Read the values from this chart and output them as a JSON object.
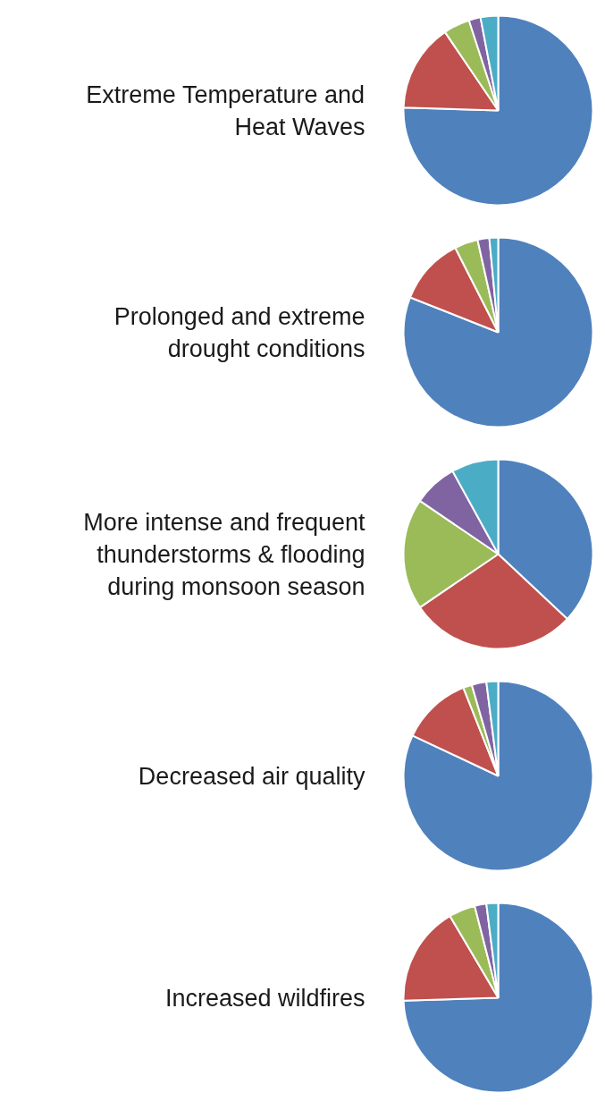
{
  "chart_data": [
    {
      "type": "pie",
      "title": "Extreme Temperature and Heat Waves",
      "categories": [
        null,
        null,
        null,
        null,
        null
      ],
      "values": [
        75.5,
        15,
        4.5,
        2,
        3
      ],
      "colors": [
        "#4f81bd",
        "#c0504d",
        "#9bbb59",
        "#8064a2",
        "#4bacc6"
      ]
    },
    {
      "type": "pie",
      "title": "Prolonged and extreme drought conditions",
      "categories": [
        null,
        null,
        null,
        null,
        null
      ],
      "values": [
        81,
        11.5,
        4,
        2,
        1.5
      ],
      "colors": [
        "#4f81bd",
        "#c0504d",
        "#9bbb59",
        "#8064a2",
        "#4bacc6"
      ]
    },
    {
      "type": "pie",
      "title": "More intense and frequent thunderstorms & flooding during monsoon season",
      "categories": [
        null,
        null,
        null,
        null,
        null
      ],
      "values": [
        37,
        28.5,
        19,
        7.5,
        8
      ],
      "colors": [
        "#4f81bd",
        "#c0504d",
        "#9bbb59",
        "#8064a2",
        "#4bacc6"
      ]
    },
    {
      "type": "pie",
      "title": "Decreased air quality",
      "categories": [
        null,
        null,
        null,
        null,
        null
      ],
      "values": [
        82,
        12,
        1.5,
        2.5,
        2
      ],
      "colors": [
        "#4f81bd",
        "#c0504d",
        "#9bbb59",
        "#8064a2",
        "#4bacc6"
      ]
    },
    {
      "type": "pie",
      "title": "Increased wildfires",
      "categories": [
        null,
        null,
        null,
        null,
        null
      ],
      "values": [
        74.5,
        17,
        4.5,
        2,
        2
      ],
      "colors": [
        "#4f81bd",
        "#c0504d",
        "#9bbb59",
        "#8064a2",
        "#4bacc6"
      ]
    }
  ]
}
